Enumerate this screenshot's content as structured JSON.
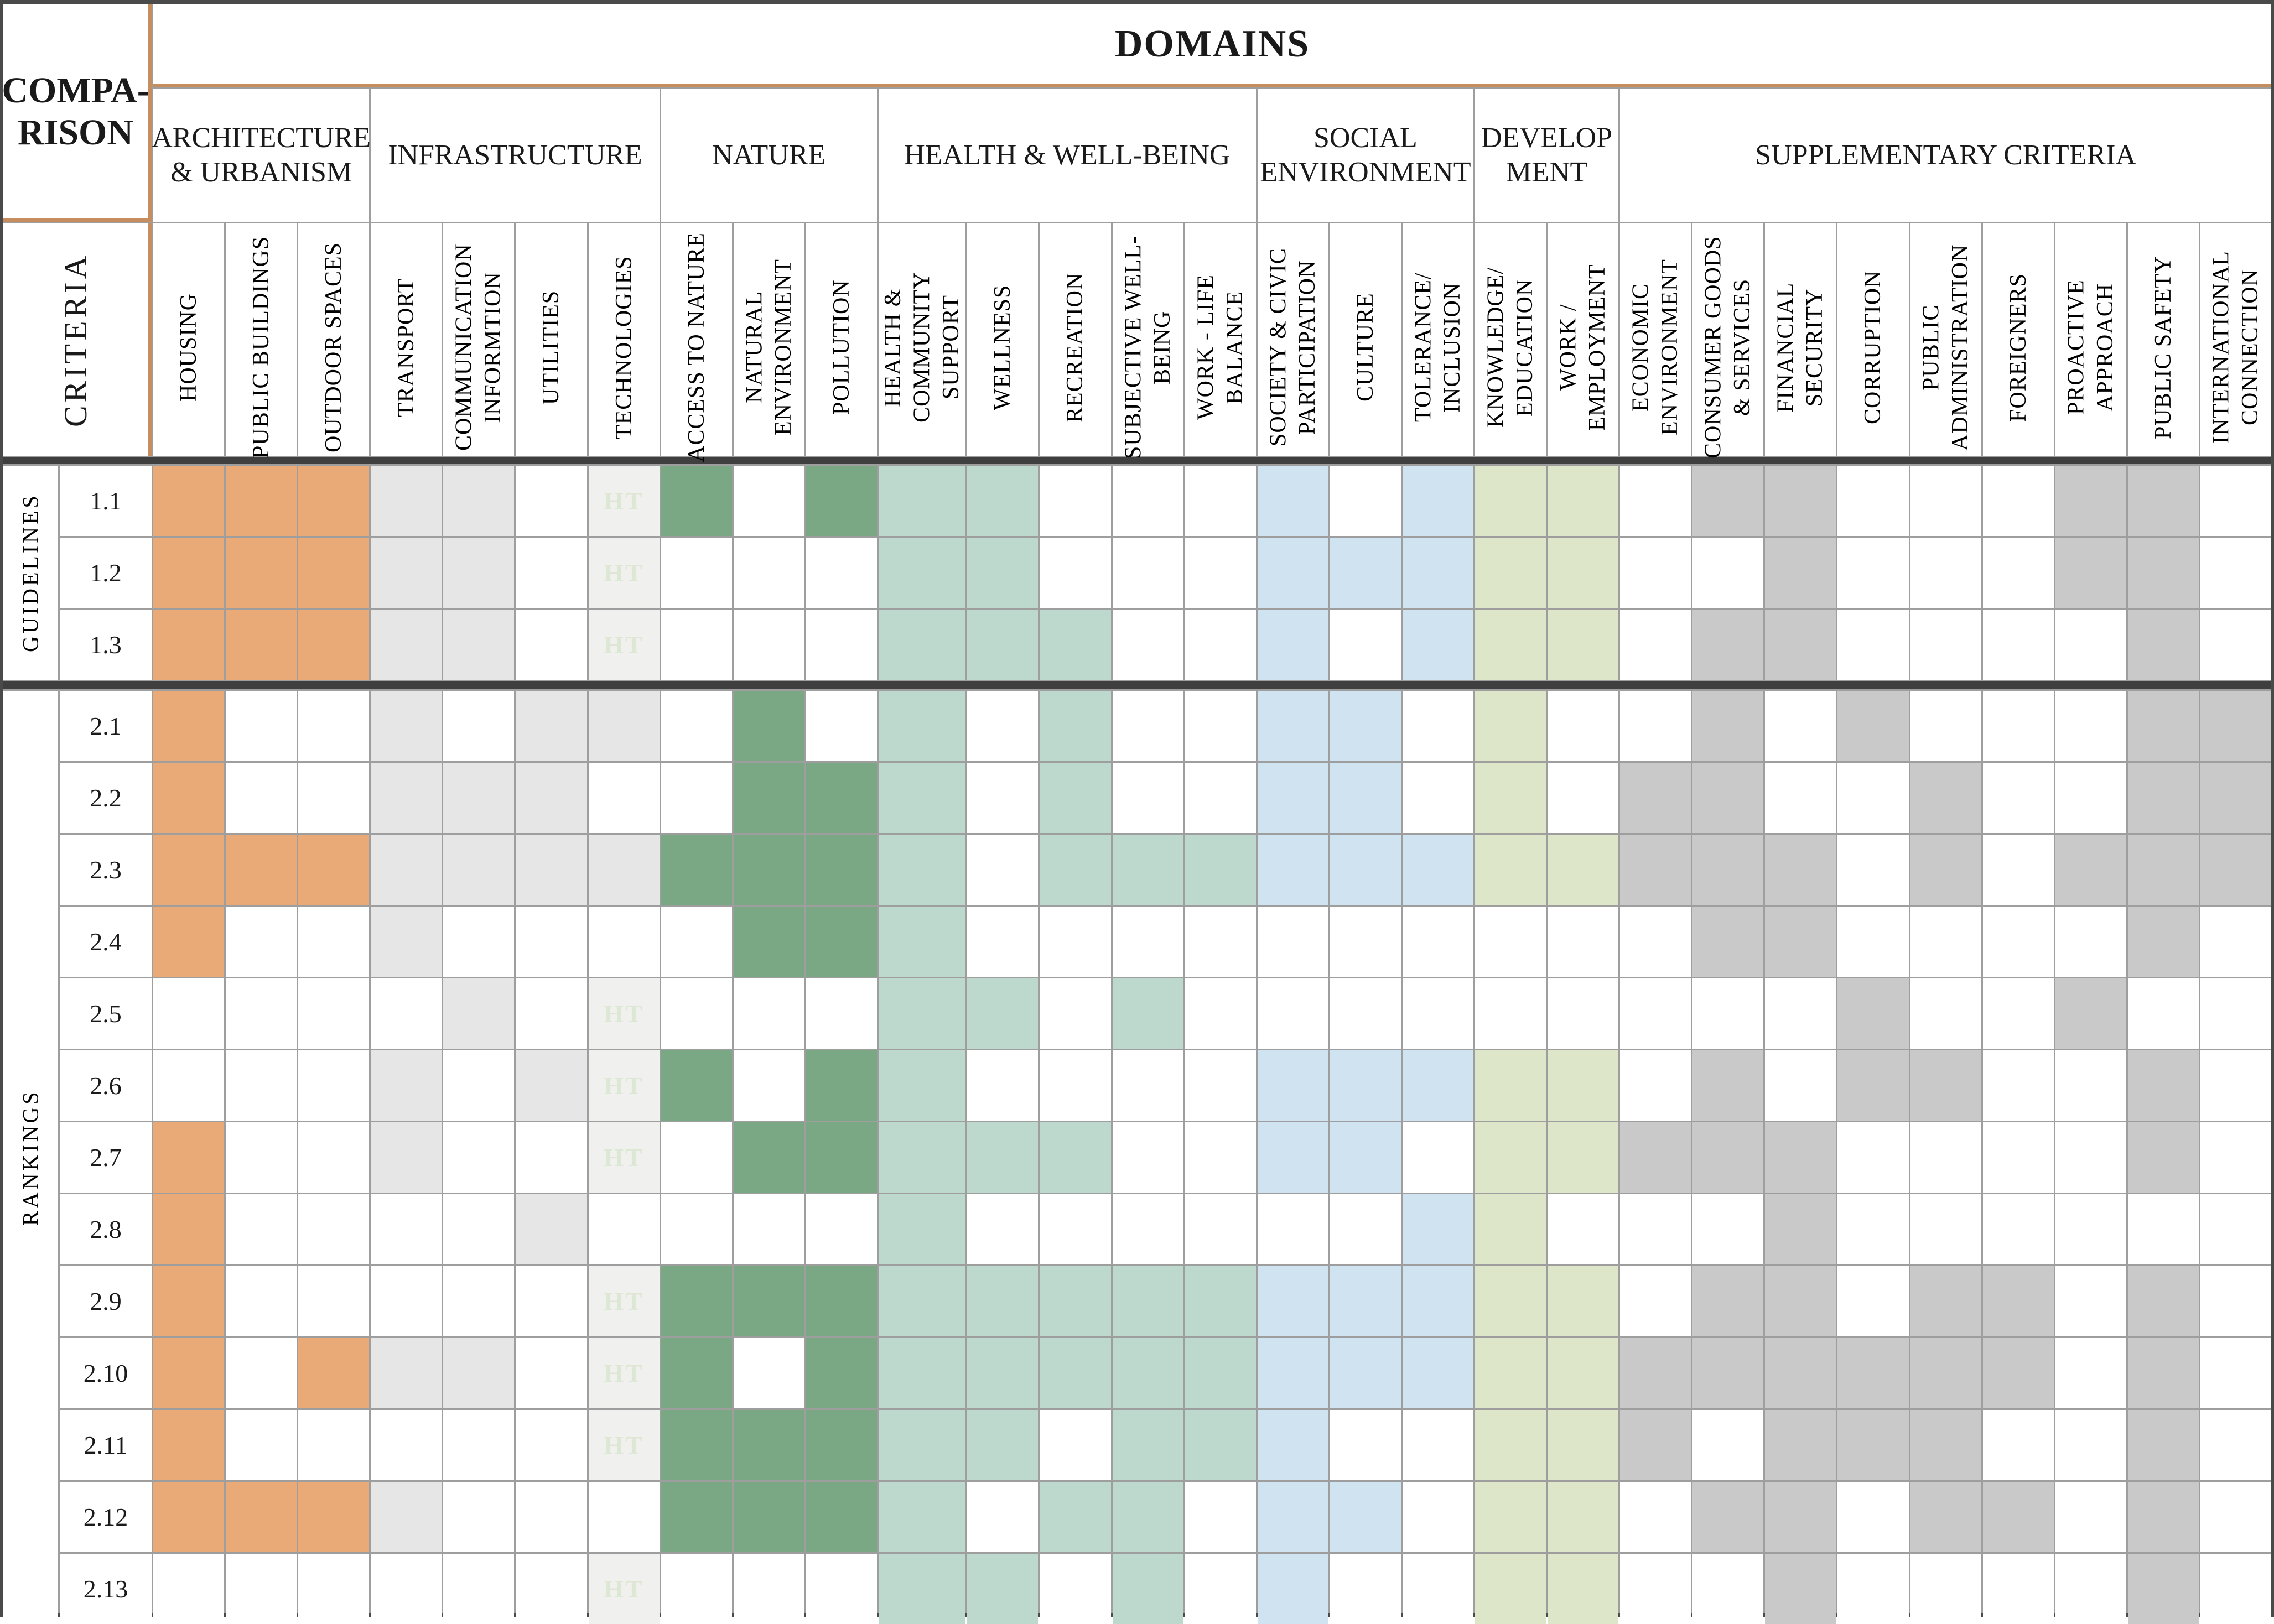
{
  "title": {
    "domains": "DOMAINS"
  },
  "comparison": {
    "line1": "COMPA-",
    "line2": "RISON",
    "criteria": "CRITERIA"
  },
  "sections": {
    "guidelines": "GUIDELINES",
    "rankings": "RANKINGS"
  },
  "domain_groups": [
    {
      "label": "ARCHITECTURE & URBANISM",
      "span": 3
    },
    {
      "label": "INFRASTRUCTURE",
      "span": 4
    },
    {
      "label": "NATURE",
      "span": 3
    },
    {
      "label": "HEALTH & WELL-BEING",
      "span": 5
    },
    {
      "label": "SOCIAL ENVIRONMENT",
      "span": 3
    },
    {
      "label": "DEVELOP MENT",
      "span": 2
    },
    {
      "label": "SUPPLEMENTARY CRITERIA",
      "span": 9
    }
  ],
  "columns": [
    "HOUSING",
    "PUBLIC BUILDINGS",
    "OUTDOOR SPACES",
    "TRANSPORT",
    "COMMUNICATION INFORMTION",
    "UTILITIES",
    "TECHNOLOGIES",
    "ACCESS TO NATURE",
    "NATURAL ENVIRONMENT",
    "POLLUTION",
    "HEALTH & COMMUNITY SUPPORT",
    "WELLNESS",
    "RECREATION",
    "SUBJECTIVE WELL-BEING",
    "WORK - LIFE BALANCE",
    "SOCIETY & CIVIC PARTICIPATION",
    "CULTURE",
    "TOLERANCE/ INCLUSION",
    "KNOWLEDGE/ EDUCATION",
    "WORK / EMPLOYMENT",
    "ECONOMIC ENVIRONMENT",
    "CONSUMER GOODS & SERVICES",
    "FINANCIAL SECURITY",
    "CORRUPTION",
    "PUBLIC ADMINISTRATION",
    "FOREIGNERS",
    "PROACTIVE APPROACH",
    "PUBLIC SAFETY",
    "INTERNATIONAL CONNECTION"
  ],
  "ht_label": "HT",
  "palette": {
    "O": "#eaaa78",
    "G": "#e6e6e6",
    "T": "#f0f0ee",
    "D": "#7aa884",
    "H": "#bdd9cd",
    "B": "#cfe4f0",
    "S": "#dde6c8",
    "Y": "#c9c9c9",
    "-": "#ffffff"
  },
  "accent_colors": {
    "orange_border": "#c68d5f",
    "ht_text": "#dde8d4",
    "grid_line": "#9e9e9e",
    "section_divider": "#3f3f3f"
  },
  "rows": [
    {
      "id": "1.1",
      "section": "guidelines",
      "cells": [
        "O",
        "O",
        "O",
        "G",
        "G",
        "-",
        "T",
        "D",
        "-",
        "D",
        "H",
        "H",
        "-",
        "-",
        "-",
        "B",
        "-",
        "B",
        "S",
        "S",
        "-",
        "Y",
        "Y",
        "-",
        "-",
        "-",
        "Y",
        "Y",
        "-"
      ]
    },
    {
      "id": "1.2",
      "section": "guidelines",
      "cells": [
        "O",
        "O",
        "O",
        "G",
        "G",
        "-",
        "T",
        "-",
        "-",
        "-",
        "H",
        "H",
        "-",
        "-",
        "-",
        "B",
        "B",
        "B",
        "S",
        "S",
        "-",
        "-",
        "Y",
        "-",
        "-",
        "-",
        "Y",
        "Y",
        "-"
      ]
    },
    {
      "id": "1.3",
      "section": "guidelines",
      "cells": [
        "O",
        "O",
        "O",
        "G",
        "G",
        "-",
        "T",
        "-",
        "-",
        "-",
        "H",
        "H",
        "H",
        "-",
        "-",
        "B",
        "-",
        "B",
        "S",
        "S",
        "-",
        "Y",
        "Y",
        "-",
        "-",
        "-",
        "-",
        "Y",
        "-"
      ]
    },
    {
      "id": "2.1",
      "section": "rankings",
      "cells": [
        "O",
        "-",
        "-",
        "G",
        "-",
        "G",
        "G",
        "-",
        "D",
        "-",
        "H",
        "-",
        "H",
        "-",
        "-",
        "B",
        "B",
        "-",
        "S",
        "-",
        "-",
        "Y",
        "-",
        "Y",
        "-",
        "-",
        "-",
        "Y",
        "Y"
      ]
    },
    {
      "id": "2.2",
      "section": "rankings",
      "cells": [
        "O",
        "-",
        "-",
        "G",
        "G",
        "G",
        "-",
        "-",
        "D",
        "D",
        "H",
        "-",
        "H",
        "-",
        "-",
        "B",
        "B",
        "-",
        "S",
        "-",
        "Y",
        "Y",
        "-",
        "-",
        "Y",
        "-",
        "-",
        "Y",
        "Y"
      ]
    },
    {
      "id": "2.3",
      "section": "rankings",
      "cells": [
        "O",
        "O",
        "O",
        "G",
        "G",
        "G",
        "G",
        "D",
        "D",
        "D",
        "H",
        "-",
        "H",
        "H",
        "H",
        "B",
        "B",
        "B",
        "S",
        "S",
        "Y",
        "Y",
        "Y",
        "-",
        "Y",
        "-",
        "Y",
        "Y",
        "Y"
      ]
    },
    {
      "id": "2.4",
      "section": "rankings",
      "cells": [
        "O",
        "-",
        "-",
        "G",
        "-",
        "-",
        "-",
        "-",
        "D",
        "D",
        "H",
        "-",
        "-",
        "-",
        "-",
        "-",
        "-",
        "-",
        "-",
        "-",
        "-",
        "Y",
        "Y",
        "-",
        "-",
        "-",
        "-",
        "Y",
        "-"
      ]
    },
    {
      "id": "2.5",
      "section": "rankings",
      "cells": [
        "-",
        "-",
        "-",
        "-",
        "G",
        "-",
        "T",
        "-",
        "-",
        "-",
        "H",
        "H",
        "-",
        "H",
        "-",
        "-",
        "-",
        "-",
        "-",
        "-",
        "-",
        "-",
        "-",
        "Y",
        "-",
        "-",
        "Y",
        "-",
        "-"
      ]
    },
    {
      "id": "2.6",
      "section": "rankings",
      "cells": [
        "-",
        "-",
        "-",
        "G",
        "-",
        "G",
        "T",
        "D",
        "-",
        "D",
        "H",
        "-",
        "-",
        "-",
        "-",
        "B",
        "B",
        "B",
        "S",
        "S",
        "-",
        "Y",
        "-",
        "Y",
        "Y",
        "-",
        "-",
        "Y",
        "-"
      ]
    },
    {
      "id": "2.7",
      "section": "rankings",
      "cells": [
        "O",
        "-",
        "-",
        "G",
        "-",
        "-",
        "T",
        "-",
        "D",
        "D",
        "H",
        "H",
        "H",
        "-",
        "-",
        "B",
        "B",
        "-",
        "S",
        "S",
        "Y",
        "Y",
        "Y",
        "-",
        "-",
        "-",
        "-",
        "Y",
        "-"
      ]
    },
    {
      "id": "2.8",
      "section": "rankings",
      "cells": [
        "O",
        "-",
        "-",
        "-",
        "-",
        "G",
        "-",
        "-",
        "-",
        "-",
        "H",
        "-",
        "-",
        "-",
        "-",
        "-",
        "-",
        "B",
        "S",
        "-",
        "-",
        "-",
        "Y",
        "-",
        "-",
        "-",
        "-",
        "-",
        "-"
      ]
    },
    {
      "id": "2.9",
      "section": "rankings",
      "cells": [
        "O",
        "-",
        "-",
        "-",
        "-",
        "-",
        "T",
        "D",
        "D",
        "D",
        "H",
        "H",
        "H",
        "H",
        "H",
        "B",
        "B",
        "B",
        "S",
        "S",
        "-",
        "Y",
        "Y",
        "-",
        "Y",
        "Y",
        "-",
        "Y",
        "-"
      ]
    },
    {
      "id": "2.10",
      "section": "rankings",
      "cells": [
        "O",
        "-",
        "O",
        "G",
        "G",
        "-",
        "T",
        "D",
        "-",
        "D",
        "H",
        "H",
        "H",
        "H",
        "H",
        "B",
        "B",
        "B",
        "S",
        "S",
        "Y",
        "Y",
        "Y",
        "Y",
        "Y",
        "Y",
        "-",
        "Y",
        "-"
      ]
    },
    {
      "id": "2.11",
      "section": "rankings",
      "cells": [
        "O",
        "-",
        "-",
        "-",
        "-",
        "-",
        "T",
        "D",
        "D",
        "D",
        "H",
        "H",
        "-",
        "H",
        "H",
        "B",
        "-",
        "-",
        "S",
        "S",
        "Y",
        "-",
        "Y",
        "Y",
        "Y",
        "-",
        "-",
        "Y",
        "-"
      ]
    },
    {
      "id": "2.12",
      "section": "rankings",
      "cells": [
        "O",
        "O",
        "O",
        "G",
        "-",
        "-",
        "-",
        "D",
        "D",
        "D",
        "H",
        "-",
        "H",
        "H",
        "-",
        "B",
        "B",
        "-",
        "S",
        "S",
        "-",
        "Y",
        "Y",
        "-",
        "Y",
        "Y",
        "-",
        "Y",
        "-"
      ]
    },
    {
      "id": "2.13",
      "section": "rankings",
      "cells": [
        "-",
        "-",
        "-",
        "-",
        "-",
        "-",
        "T",
        "-",
        "-",
        "-",
        "H",
        "H",
        "-",
        "H",
        "-",
        "B",
        "-",
        "-",
        "S",
        "S",
        "-",
        "-",
        "Y",
        "-",
        "-",
        "-",
        "-",
        "Y",
        "-"
      ]
    }
  ]
}
